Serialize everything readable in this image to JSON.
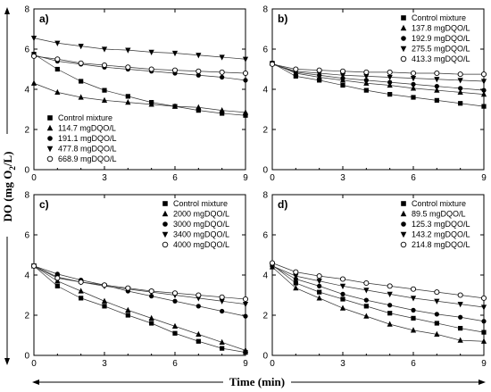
{
  "figure": {
    "ylabel_main": "DO (mg O",
    "ylabel_sub": "2",
    "ylabel_tail": "/L)",
    "xlabel": "Time (min)"
  },
  "chart_data": [
    {
      "type": "line",
      "panel": "a)",
      "xlim": [
        0,
        9
      ],
      "ylim": [
        0,
        8
      ],
      "xticks": [
        0,
        3,
        6,
        9
      ],
      "yticks": [
        0,
        2,
        4,
        6,
        8
      ],
      "legend_position": "bottom-left",
      "series": [
        {
          "name": "Control mixture",
          "marker": "square",
          "x": [
            0,
            1,
            2,
            3,
            4,
            5,
            6,
            7,
            8,
            9
          ],
          "y": [
            5.75,
            5.0,
            4.4,
            3.95,
            3.65,
            3.35,
            3.15,
            2.95,
            2.8,
            2.7
          ]
        },
        {
          "name": "114.7 mgDQO/L",
          "marker": "triangle-up",
          "x": [
            0,
            1,
            2,
            3,
            4,
            5,
            6,
            7,
            8,
            9
          ],
          "y": [
            4.3,
            3.85,
            3.6,
            3.45,
            3.35,
            3.25,
            3.15,
            3.1,
            2.95,
            2.85
          ]
        },
        {
          "name": "191.1 mgDQO/L",
          "marker": "circle",
          "x": [
            0,
            1,
            2,
            3,
            4,
            5,
            6,
            7,
            8,
            9
          ],
          "y": [
            5.7,
            5.4,
            5.25,
            5.1,
            5.0,
            4.9,
            4.8,
            4.7,
            4.6,
            4.45
          ]
        },
        {
          "name": "477.8 mgDQO/L",
          "marker": "triangle-down",
          "x": [
            0,
            1,
            2,
            3,
            4,
            5,
            6,
            7,
            8,
            9
          ],
          "y": [
            6.55,
            6.3,
            6.15,
            6.0,
            5.95,
            5.85,
            5.8,
            5.7,
            5.6,
            5.5
          ]
        },
        {
          "name": "668.9 mgDQO/L",
          "marker": "circle-open",
          "x": [
            0,
            1,
            2,
            3,
            4,
            5,
            6,
            7,
            8,
            9
          ],
          "y": [
            5.65,
            5.5,
            5.3,
            5.2,
            5.1,
            5.0,
            4.95,
            4.9,
            4.85,
            4.8
          ]
        }
      ]
    },
    {
      "type": "line",
      "panel": "b)",
      "xlim": [
        0,
        9
      ],
      "ylim": [
        0,
        8
      ],
      "xticks": [
        0,
        3,
        6,
        9
      ],
      "yticks": [
        0,
        2,
        4,
        6,
        8
      ],
      "legend_position": "top-right",
      "series": [
        {
          "name": "Control mixture",
          "marker": "square",
          "x": [
            0,
            1,
            2,
            3,
            4,
            5,
            6,
            7,
            8,
            9
          ],
          "y": [
            5.3,
            4.65,
            4.45,
            4.2,
            3.95,
            3.75,
            3.6,
            3.45,
            3.3,
            3.15
          ]
        },
        {
          "name": "137.8 mgDQO/L",
          "marker": "triangle-up",
          "x": [
            0,
            1,
            2,
            3,
            4,
            5,
            6,
            7,
            8,
            9
          ],
          "y": [
            5.3,
            4.8,
            4.6,
            4.45,
            4.3,
            4.2,
            4.05,
            3.95,
            3.85,
            3.75
          ]
        },
        {
          "name": "192.9 mgDQO/L",
          "marker": "circle",
          "x": [
            0,
            1,
            2,
            3,
            4,
            5,
            6,
            7,
            8,
            9
          ],
          "y": [
            5.25,
            4.85,
            4.7,
            4.55,
            4.45,
            4.35,
            4.25,
            4.15,
            4.05,
            3.95
          ]
        },
        {
          "name": "275.5 mgDQO/L",
          "marker": "triangle-down",
          "x": [
            0,
            1,
            2,
            3,
            4,
            5,
            6,
            7,
            8,
            9
          ],
          "y": [
            5.25,
            4.9,
            4.8,
            4.7,
            4.65,
            4.6,
            4.55,
            4.5,
            4.45,
            4.4
          ]
        },
        {
          "name": "413.3 mgDQO/L",
          "marker": "circle-open",
          "x": [
            0,
            1,
            2,
            3,
            4,
            5,
            6,
            7,
            8,
            9
          ],
          "y": [
            5.25,
            5.0,
            4.95,
            4.9,
            4.85,
            4.85,
            4.8,
            4.8,
            4.75,
            4.75
          ]
        }
      ]
    },
    {
      "type": "line",
      "panel": "c)",
      "xlim": [
        0,
        9
      ],
      "ylim": [
        0,
        8
      ],
      "xticks": [
        0,
        3,
        6,
        9
      ],
      "yticks": [
        0,
        2,
        4,
        6,
        8
      ],
      "legend_position": "top-right",
      "series": [
        {
          "name": "Control mixture",
          "marker": "square",
          "x": [
            0,
            1,
            2,
            3,
            4,
            5,
            6,
            7,
            8,
            9
          ],
          "y": [
            4.45,
            3.45,
            2.85,
            2.45,
            2.0,
            1.6,
            1.1,
            0.7,
            0.35,
            0.15
          ]
        },
        {
          "name": "2000 mgDQO/L",
          "marker": "triangle-up",
          "x": [
            0,
            1,
            2,
            3,
            4,
            5,
            6,
            7,
            8,
            9
          ],
          "y": [
            4.45,
            3.7,
            3.2,
            2.7,
            2.25,
            1.85,
            1.45,
            1.05,
            0.65,
            0.25
          ]
        },
        {
          "name": "3000 mgDQO/L",
          "marker": "circle",
          "x": [
            0,
            1,
            2,
            3,
            4,
            5,
            6,
            7,
            8,
            9
          ],
          "y": [
            4.45,
            4.05,
            3.75,
            3.5,
            3.2,
            2.95,
            2.7,
            2.45,
            2.2,
            1.95
          ]
        },
        {
          "name": "3400 mgDQO/L",
          "marker": "triangle-down",
          "x": [
            0,
            1,
            2,
            3,
            4,
            5,
            6,
            7,
            8,
            9
          ],
          "y": [
            4.45,
            3.9,
            3.65,
            3.45,
            3.3,
            3.15,
            3.0,
            2.85,
            2.7,
            2.55
          ]
        },
        {
          "name": "4000 mgDQO/L",
          "marker": "circle-open",
          "x": [
            0,
            1,
            2,
            3,
            4,
            5,
            6,
            7,
            8,
            9
          ],
          "y": [
            4.45,
            3.85,
            3.65,
            3.5,
            3.35,
            3.2,
            3.1,
            3.0,
            2.9,
            2.8
          ]
        }
      ]
    },
    {
      "type": "line",
      "panel": "d)",
      "xlim": [
        0,
        9
      ],
      "ylim": [
        0,
        8
      ],
      "xticks": [
        0,
        3,
        6,
        9
      ],
      "yticks": [
        0,
        2,
        4,
        6,
        8
      ],
      "legend_position": "top-right",
      "series": [
        {
          "name": "Control mixture",
          "marker": "square",
          "x": [
            0,
            1,
            2,
            3,
            4,
            5,
            6,
            7,
            8,
            9
          ],
          "y": [
            4.5,
            3.6,
            3.15,
            2.8,
            2.45,
            2.1,
            1.85,
            1.6,
            1.35,
            1.15
          ]
        },
        {
          "name": "89.5 mgDQO/L",
          "marker": "triangle-up",
          "x": [
            0,
            1,
            2,
            3,
            4,
            5,
            6,
            7,
            8,
            9
          ],
          "y": [
            4.4,
            3.35,
            2.85,
            2.35,
            1.95,
            1.55,
            1.25,
            1.05,
            0.75,
            0.7
          ]
        },
        {
          "name": "125.3 mgDQO/L",
          "marker": "circle",
          "x": [
            0,
            1,
            2,
            3,
            4,
            5,
            6,
            7,
            8,
            9
          ],
          "y": [
            4.45,
            3.8,
            3.45,
            3.05,
            2.75,
            2.5,
            2.25,
            2.05,
            1.9,
            1.7
          ]
        },
        {
          "name": "143.2 mgDQO/L",
          "marker": "triangle-down",
          "x": [
            0,
            1,
            2,
            3,
            4,
            5,
            6,
            7,
            8,
            9
          ],
          "y": [
            4.45,
            3.95,
            3.7,
            3.45,
            3.25,
            3.05,
            2.85,
            2.7,
            2.55,
            2.4
          ]
        },
        {
          "name": "214.8 mgDQO/L",
          "marker": "circle-open",
          "x": [
            0,
            1,
            2,
            3,
            4,
            5,
            6,
            7,
            8,
            9
          ],
          "y": [
            4.6,
            4.15,
            3.95,
            3.8,
            3.6,
            3.45,
            3.3,
            3.15,
            3.0,
            2.85
          ]
        }
      ]
    }
  ]
}
